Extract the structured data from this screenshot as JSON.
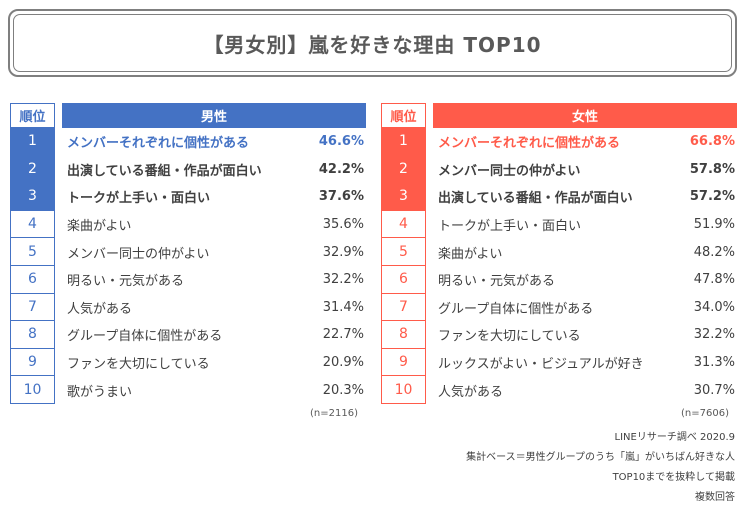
{
  "title": "【男女別】嵐を好きな理由 TOP10",
  "colors": {
    "male_accent": "#4472c4",
    "female_accent": "#ff5b4a",
    "male_light_border": "#4472c4",
    "female_light_border": "#ff5b4a",
    "text": "#404040"
  },
  "male": {
    "rank_header": "順位",
    "header": "男性",
    "n": "(n=2116)",
    "rows": [
      {
        "rank": "1",
        "label": "メンバーそれぞれに個性がある",
        "pct": "46.6%"
      },
      {
        "rank": "2",
        "label": "出演している番組・作品が面白い",
        "pct": "42.2%"
      },
      {
        "rank": "3",
        "label": "トークが上手い・面白い",
        "pct": "37.6%"
      },
      {
        "rank": "4",
        "label": "楽曲がよい",
        "pct": "35.6%"
      },
      {
        "rank": "5",
        "label": "メンバー同士の仲がよい",
        "pct": "32.9%"
      },
      {
        "rank": "6",
        "label": "明るい・元気がある",
        "pct": "32.2%"
      },
      {
        "rank": "7",
        "label": "人気がある",
        "pct": "31.4%"
      },
      {
        "rank": "8",
        "label": "グループ自体に個性がある",
        "pct": "22.7%"
      },
      {
        "rank": "9",
        "label": "ファンを大切にしている",
        "pct": "20.9%"
      },
      {
        "rank": "10",
        "label": "歌がうまい",
        "pct": "20.3%"
      }
    ]
  },
  "female": {
    "rank_header": "順位",
    "header": "女性",
    "n": "(n=7606)",
    "rows": [
      {
        "rank": "1",
        "label": "メンバーそれぞれに個性がある",
        "pct": "66.8%"
      },
      {
        "rank": "2",
        "label": "メンバー同士の仲がよい",
        "pct": "57.8%"
      },
      {
        "rank": "3",
        "label": "出演している番組・作品が面白い",
        "pct": "57.2%"
      },
      {
        "rank": "4",
        "label": "トークが上手い・面白い",
        "pct": "51.9%"
      },
      {
        "rank": "5",
        "label": "楽曲がよい",
        "pct": "48.2%"
      },
      {
        "rank": "6",
        "label": "明るい・元気がある",
        "pct": "47.8%"
      },
      {
        "rank": "7",
        "label": "グループ自体に個性がある",
        "pct": "34.0%"
      },
      {
        "rank": "8",
        "label": "ファンを大切にしている",
        "pct": "32.2%"
      },
      {
        "rank": "9",
        "label": "ルックスがよい・ビジュアルが好き",
        "pct": "31.3%"
      },
      {
        "rank": "10",
        "label": "人気がある",
        "pct": "30.7%"
      }
    ]
  },
  "notes": [
    "LINEリサーチ調べ 2020.9",
    "集計ベース＝男性グループのうち「嵐」がいちばん好きな人",
    "TOP10までを抜粋して掲載",
    "複数回答"
  ]
}
